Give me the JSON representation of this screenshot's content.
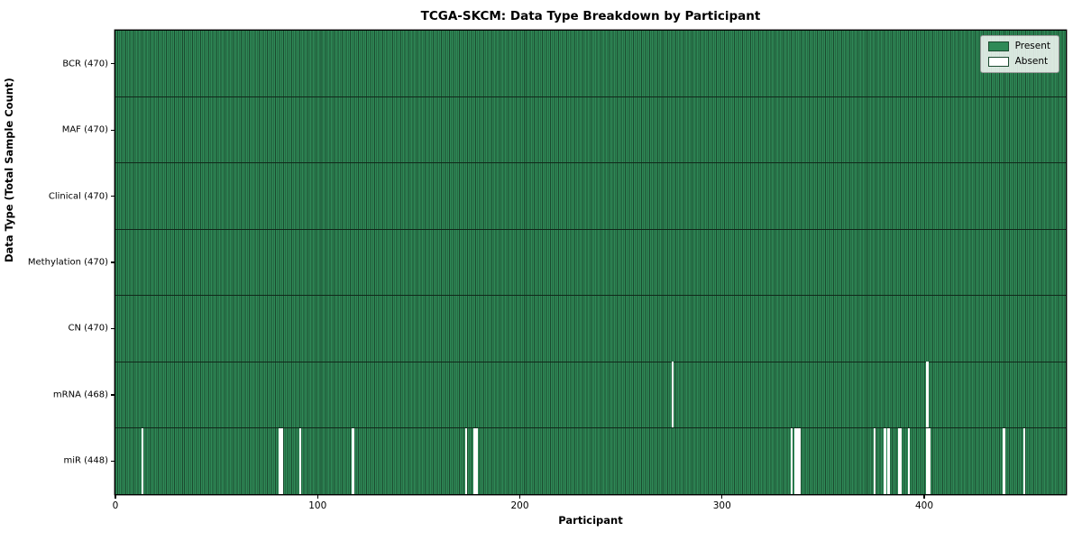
{
  "title": "TCGA-SKCM: Data Type Breakdown by Participant",
  "axes": {
    "xlabel": "Participant",
    "ylabel": "Data Type (Total Sample Count)"
  },
  "legend": {
    "items": [
      {
        "label": "Present",
        "color": "#2f8a57"
      },
      {
        "label": "Absent",
        "color": "#ffffff"
      }
    ],
    "position": "upper right"
  },
  "chart_data": {
    "type": "heatmap",
    "title": "TCGA-SKCM: Data Type Breakdown by Participant",
    "xlabel": "Participant",
    "ylabel": "Data Type (Total Sample Count)",
    "xlim": [
      0,
      470
    ],
    "x_ticks": [
      0,
      100,
      200,
      300,
      400
    ],
    "n_participants": 470,
    "rows": [
      {
        "label": "BCR (470)",
        "data_type": "BCR",
        "present_count": 470,
        "absent_participants": []
      },
      {
        "label": "MAF (470)",
        "data_type": "MAF",
        "present_count": 470,
        "absent_participants": []
      },
      {
        "label": "Clinical (470)",
        "data_type": "Clinical",
        "present_count": 470,
        "absent_participants": []
      },
      {
        "label": "Methylation (470)",
        "data_type": "Methylation",
        "present_count": 470,
        "absent_participants": []
      },
      {
        "label": "CN (470)",
        "data_type": "CN",
        "present_count": 470,
        "absent_participants": []
      },
      {
        "label": "mRNA (468)",
        "data_type": "mRNA",
        "present_count": 468,
        "absent_participants": [
          275,
          401
        ]
      },
      {
        "label": "miR (448)",
        "data_type": "miR",
        "present_count": 448,
        "absent_participants": [
          13,
          81,
          82,
          91,
          117,
          173,
          177,
          178,
          334,
          336,
          337,
          338,
          375,
          380,
          382,
          387,
          388,
          392,
          401,
          402,
          439,
          449
        ]
      }
    ],
    "legend_entries": [
      "Present",
      "Absent"
    ],
    "legend_position": "upper right",
    "grid": false,
    "colors": {
      "present": "#2f8a57",
      "absent": "#ffffff",
      "bar_edge": "#1b4a2f",
      "row_separator": "#10281a",
      "spine": "#000000",
      "legend_border": "#9a9a9a"
    }
  }
}
